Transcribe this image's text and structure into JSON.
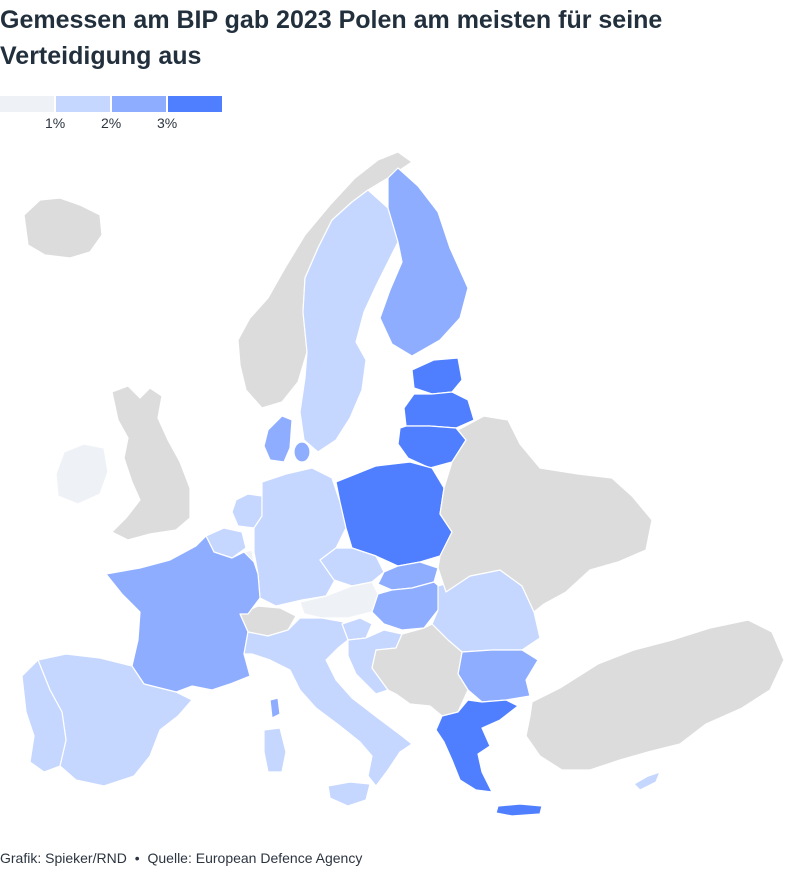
{
  "title": "Gemessen am BIP gab 2023 Polen am meisten für seine Verteidigung aus",
  "legend": {
    "colors": [
      "#eef1f6",
      "#c5d6ff",
      "#8fadff",
      "#4f7fff"
    ],
    "labels": [
      "1%",
      "2%",
      "3%"
    ]
  },
  "colors": {
    "no_data": "#dcdcdc",
    "below_1": "#eef1f6",
    "1_to_2": "#c5d6ff",
    "2_to_3": "#8fadff",
    "above_3": "#4f7fff"
  },
  "footer": {
    "credit": "Grafik: Spieker/RND",
    "separator": "•",
    "source": "Quelle: European Defence Agency"
  }
}
